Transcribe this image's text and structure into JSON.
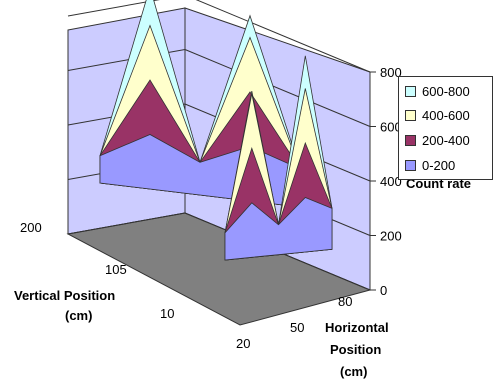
{
  "chart_data": {
    "type": "area",
    "subtype": "3d-surface",
    "title": "",
    "zlabel": "Count rate",
    "zticks": [
      "0",
      "200",
      "400",
      "600",
      "800"
    ],
    "zlim": [
      0,
      800
    ],
    "xlabel_line1": "Horizontal",
    "xlabel_line2": "Position",
    "xlabel_line3": "(cm)",
    "xticks": [
      "20",
      "50",
      "80"
    ],
    "ylabel_line1": "Vertical Position",
    "ylabel_line2": "(cm)",
    "yticks": [
      "200",
      "105",
      "10"
    ],
    "legend_position": "top-right",
    "legend": [
      {
        "label": "600-800",
        "color": "#ccffff"
      },
      {
        "label": "400-600",
        "color": "#ffffcc"
      },
      {
        "label": "200-400",
        "color": "#993366"
      },
      {
        "label": "0-200",
        "color": "#9999ff"
      }
    ],
    "series": [
      {
        "vertical": "200",
        "values": [
          100,
          740,
          120,
          680,
          140
        ]
      },
      {
        "vertical": "10",
        "values": [
          100,
          610,
          110,
          720,
          150
        ]
      }
    ],
    "colors": {
      "walls": "#ccccff",
      "floor": "#808080"
    }
  }
}
